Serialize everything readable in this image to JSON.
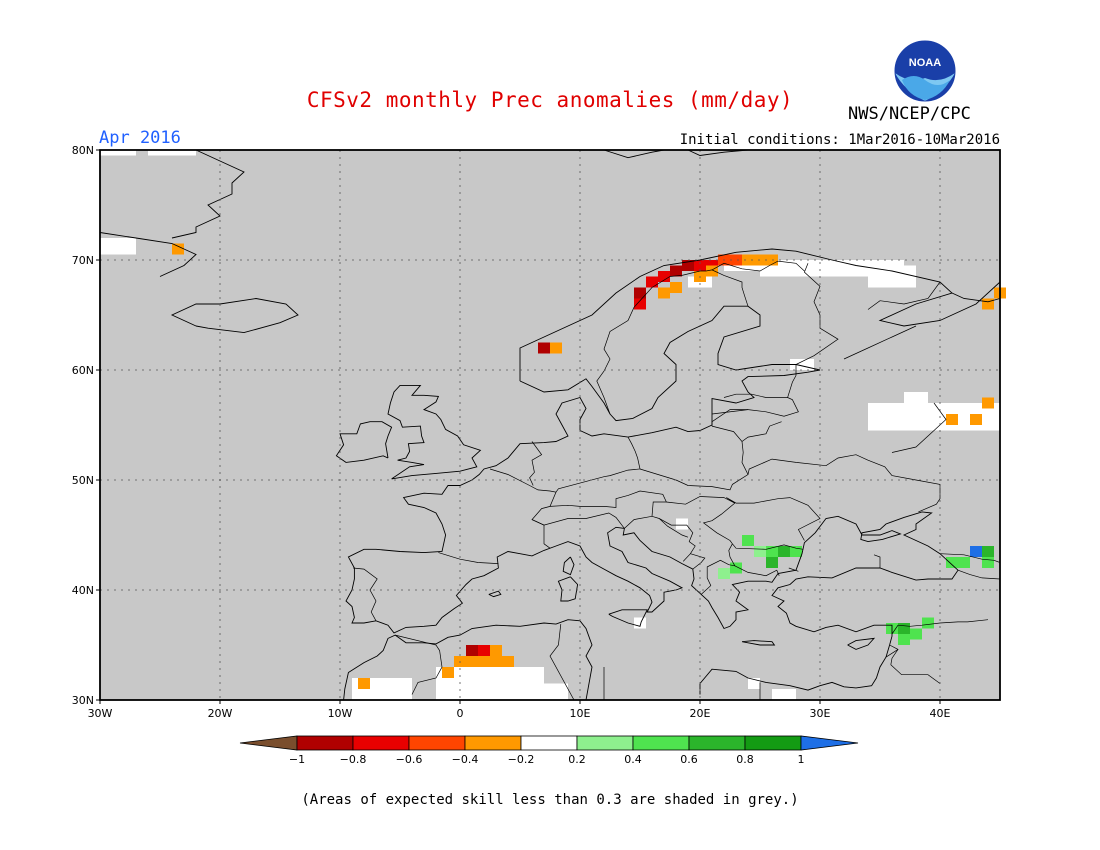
{
  "header": {
    "title": "CFSv2 monthly Prec anomalies (mm/day)",
    "month": "Apr 2016",
    "initial_conditions": "Initial conditions: 1Mar2016-10Mar2016",
    "agency": "NWS/NCEP/CPC",
    "logo_text": "NOAA"
  },
  "map": {
    "lon_range": [
      -30,
      45
    ],
    "lat_range": [
      30,
      80
    ],
    "land_color": "#c8c8c8",
    "lat_labels": [
      "80N",
      "70N",
      "60N",
      "50N",
      "40N",
      "30N"
    ],
    "lon_labels": [
      "30W",
      "20W",
      "10W",
      "0",
      "10E",
      "20E",
      "30E",
      "40E"
    ],
    "grid": "dotted"
  },
  "colorbar": {
    "ticks": [
      "-1",
      "-0.8",
      "-0.6",
      "-0.4",
      "-0.2",
      "0.2",
      "0.4",
      "0.6",
      "0.8",
      "1"
    ],
    "colors": [
      "#7a4e2d",
      "#b00000",
      "#e80000",
      "#ff4500",
      "#ff9900",
      "#ffffff",
      "#8ef08e",
      "#4fe34f",
      "#2bb52b",
      "#139b13",
      "#1e6fe6"
    ]
  },
  "chart_data": {
    "type": "heatmap",
    "title": "CFSv2 monthly Prec anomalies (mm/day)",
    "subtitle": "Apr 2016",
    "units": "mm/day",
    "xlim": [
      -30,
      45
    ],
    "ylim": [
      30,
      80
    ],
    "cells": [
      {
        "lon": 24,
        "lat": 70,
        "v": -0.3
      },
      {
        "lon": 25,
        "lat": 70,
        "v": -0.3
      },
      {
        "lon": 26,
        "lat": 70,
        "v": -0.3
      },
      {
        "lon": 22,
        "lat": 70,
        "v": -0.5
      },
      {
        "lon": 23,
        "lat": 70,
        "v": -0.5
      },
      {
        "lon": 21,
        "lat": 69.5,
        "v": -0.7
      },
      {
        "lon": 20,
        "lat": 69.5,
        "v": -0.7
      },
      {
        "lon": 19,
        "lat": 69.5,
        "v": -0.9
      },
      {
        "lon": 18,
        "lat": 69,
        "v": -0.9
      },
      {
        "lon": 17,
        "lat": 68.5,
        "v": -0.7
      },
      {
        "lon": 16,
        "lat": 68,
        "v": -0.7
      },
      {
        "lon": 15,
        "lat": 67,
        "v": -0.9
      },
      {
        "lon": 15,
        "lat": 66,
        "v": -0.7
      },
      {
        "lon": 17,
        "lat": 67,
        "v": -0.3
      },
      {
        "lon": 18,
        "lat": 67.5,
        "v": -0.3
      },
      {
        "lon": 20,
        "lat": 68.5,
        "v": -0.3
      },
      {
        "lon": 21,
        "lat": 69,
        "v": -0.3
      },
      {
        "lon": 7,
        "lat": 62,
        "v": -0.9
      },
      {
        "lon": 8,
        "lat": 62,
        "v": -0.3
      },
      {
        "lon": -23.5,
        "lat": 71,
        "v": -0.3
      },
      {
        "lon": 44,
        "lat": 66,
        "v": -0.3
      },
      {
        "lon": 45,
        "lat": 67,
        "v": -0.3
      },
      {
        "lon": 44,
        "lat": 57,
        "v": -0.3
      },
      {
        "lon": 43,
        "lat": 55.5,
        "v": -0.3
      },
      {
        "lon": 41,
        "lat": 55.5,
        "v": -0.3
      },
      {
        "lon": 1,
        "lat": 34.5,
        "v": -0.9
      },
      {
        "lon": 2,
        "lat": 34.5,
        "v": -0.7
      },
      {
        "lon": 3,
        "lat": 34.5,
        "v": -0.3
      },
      {
        "lon": 0,
        "lat": 33.5,
        "v": -0.3
      },
      {
        "lon": 1,
        "lat": 33.5,
        "v": -0.3
      },
      {
        "lon": 2,
        "lat": 33.5,
        "v": -0.3
      },
      {
        "lon": 3,
        "lat": 33.5,
        "v": -0.3
      },
      {
        "lon": 4,
        "lat": 33.5,
        "v": -0.3
      },
      {
        "lon": -1,
        "lat": 32.5,
        "v": -0.3
      },
      {
        "lon": -8,
        "lat": 31.5,
        "v": -0.3
      },
      {
        "lon": 24,
        "lat": 44.5,
        "v": 0.5
      },
      {
        "lon": 25,
        "lat": 43.5,
        "v": 0.3
      },
      {
        "lon": 26,
        "lat": 43.5,
        "v": 0.5
      },
      {
        "lon": 27,
        "lat": 43.5,
        "v": 0.7
      },
      {
        "lon": 28,
        "lat": 43.5,
        "v": 0.5
      },
      {
        "lon": 26,
        "lat": 42.5,
        "v": 0.7
      },
      {
        "lon": 23,
        "lat": 42,
        "v": 0.5
      },
      {
        "lon": 22,
        "lat": 41.5,
        "v": 0.3
      },
      {
        "lon": 37,
        "lat": 36.5,
        "v": 0.7
      },
      {
        "lon": 37,
        "lat": 35.5,
        "v": 0.5
      },
      {
        "lon": 38,
        "lat": 36,
        "v": 0.5
      },
      {
        "lon": 36,
        "lat": 36.5,
        "v": 0.5
      },
      {
        "lon": 39,
        "lat": 37,
        "v": 0.5
      },
      {
        "lon": 41,
        "lat": 42.5,
        "v": 0.5
      },
      {
        "lon": 42,
        "lat": 42.5,
        "v": 0.5
      },
      {
        "lon": 44,
        "lat": 42.5,
        "v": 0.5
      },
      {
        "lon": 43,
        "lat": 43.5,
        "v": 1.1
      },
      {
        "lon": 44,
        "lat": 43.5,
        "v": 0.7
      }
    ],
    "white_regions": [
      {
        "lon": [
          -30,
          -27
        ],
        "lat": [
          79.5,
          80
        ]
      },
      {
        "lon": [
          -26,
          -22
        ],
        "lat": [
          79.5,
          80
        ]
      },
      {
        "lon": [
          -30,
          -27
        ],
        "lat": [
          70.5,
          72
        ]
      },
      {
        "lon": [
          22,
          37
        ],
        "lat": [
          69,
          70
        ]
      },
      {
        "lon": [
          25,
          38
        ],
        "lat": [
          68.5,
          69.5
        ]
      },
      {
        "lon": [
          34,
          38
        ],
        "lat": [
          67.5,
          69
        ]
      },
      {
        "lon": [
          19,
          21
        ],
        "lat": [
          67.5,
          68.5
        ]
      },
      {
        "lon": [
          27.5,
          29.5
        ],
        "lat": [
          60,
          61
        ]
      },
      {
        "lon": [
          34,
          45
        ],
        "lat": [
          54.5,
          57
        ]
      },
      {
        "lon": [
          37,
          39
        ],
        "lat": [
          57,
          58
        ]
      },
      {
        "lon": [
          18,
          19
        ],
        "lat": [
          45.5,
          46.5
        ]
      },
      {
        "lon": [
          14.5,
          15.5
        ],
        "lat": [
          36.5,
          37.5
        ]
      },
      {
        "lon": [
          -9,
          -4
        ],
        "lat": [
          30,
          32
        ]
      },
      {
        "lon": [
          -2,
          7
        ],
        "lat": [
          30,
          33
        ]
      },
      {
        "lon": [
          5,
          9
        ],
        "lat": [
          30,
          31.5
        ]
      },
      {
        "lon": [
          24,
          25
        ],
        "lat": [
          31,
          32
        ]
      },
      {
        "lon": [
          26,
          28
        ],
        "lat": [
          30,
          31
        ]
      }
    ],
    "levels": [
      -1,
      -0.8,
      -0.6,
      -0.4,
      -0.2,
      0.2,
      0.4,
      0.6,
      0.8,
      1
    ],
    "footnote": "(Areas of expected skill less than 0.3 are shaded in grey.)"
  },
  "footer": {
    "note": "(Areas of expected skill less than 0.3 are shaded in grey.)"
  }
}
